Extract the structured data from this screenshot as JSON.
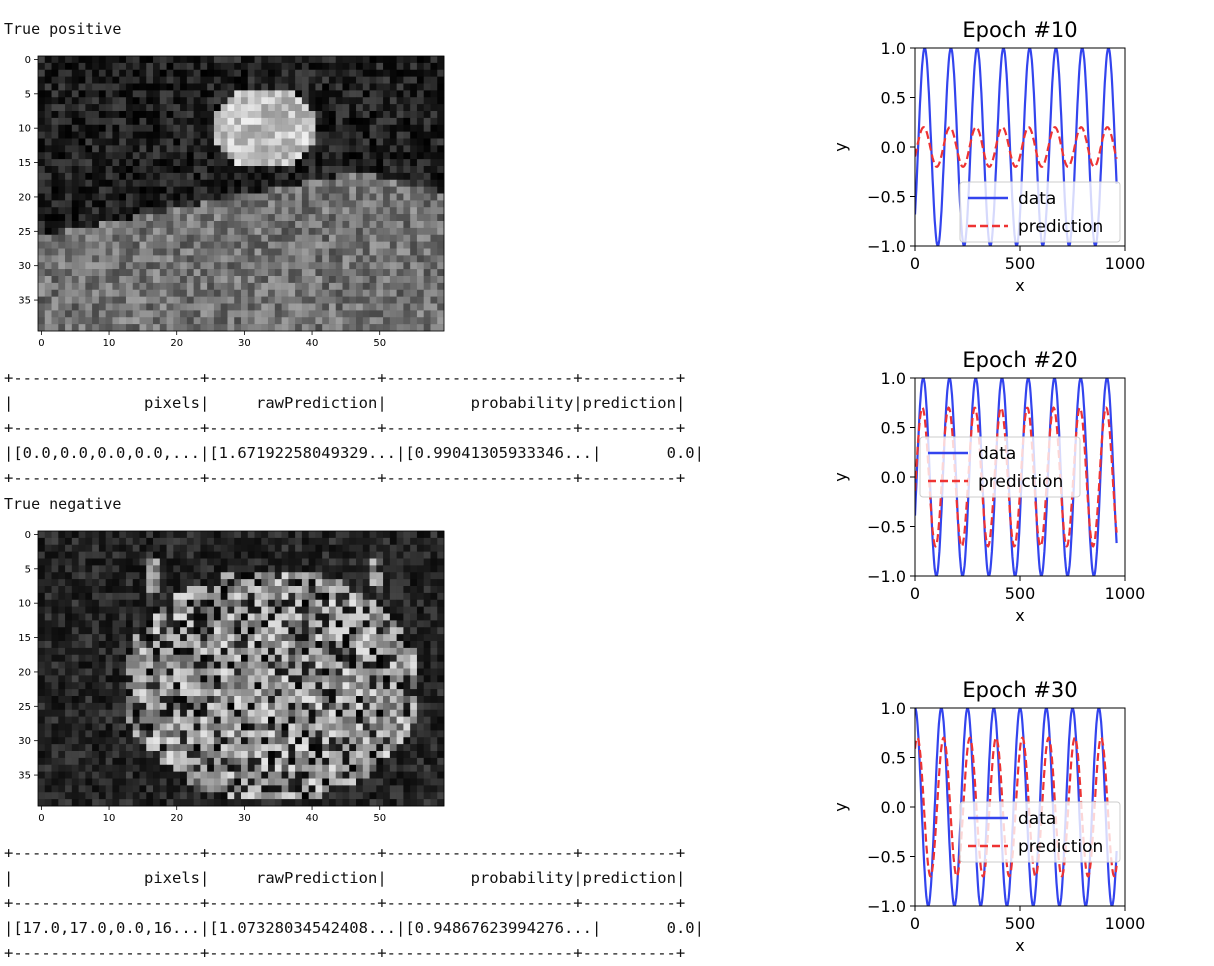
{
  "sections": [
    {
      "heading": "True positive",
      "image_subject": "person-photo-pixelated",
      "table": {
        "headers": [
          "pixels",
          "rawPrediction",
          "probability",
          "prediction"
        ],
        "row": [
          "[0.0,0.0,0.0,0.0,...",
          "[1.67192258049329...",
          "[0.99041305933346...",
          "0.0"
        ]
      }
    },
    {
      "heading": "True negative",
      "image_subject": "tiger-photo-pixelated",
      "table": {
        "headers": [
          "pixels",
          "rawPrediction",
          "probability",
          "prediction"
        ],
        "row": [
          "[17.0,17.0,0.0,16...",
          "[1.07328034542408...",
          "[0.94867623994276...",
          "0.0"
        ]
      }
    }
  ],
  "image_axes": {
    "y_ticks": [
      "0",
      "5",
      "10",
      "15",
      "20",
      "25",
      "30",
      "35"
    ],
    "x_ticks": [
      "0",
      "10",
      "20",
      "30",
      "40",
      "50"
    ]
  },
  "chart_data": [
    {
      "type": "line",
      "title": "Epoch #10",
      "xlabel": "x",
      "ylabel": "y",
      "xlim": [
        0,
        1000
      ],
      "ylim": [
        -1,
        1
      ],
      "x_ticks": [
        "0",
        "500",
        "1000"
      ],
      "y_ticks": [
        "1.0",
        "0.5",
        "0.0",
        "−0.5",
        "−1.0"
      ],
      "legend": [
        "data",
        "prediction"
      ],
      "legend_position": "lower-right",
      "series": [
        {
          "name": "data",
          "color": "#3344ee",
          "style": "solid",
          "amplitude": 1.0,
          "period": 125,
          "phase": -0.75,
          "x_end": 960
        },
        {
          "name": "prediction",
          "color": "#ee3333",
          "style": "dashed",
          "amplitude": 0.2,
          "period": 125,
          "phase": -0.5,
          "x_end": 960
        }
      ]
    },
    {
      "type": "line",
      "title": "Epoch #20",
      "xlabel": "x",
      "ylabel": "y",
      "xlim": [
        0,
        1000
      ],
      "ylim": [
        -1,
        1
      ],
      "x_ticks": [
        "0",
        "500",
        "1000"
      ],
      "y_ticks": [
        "1.0",
        "0.5",
        "0.0",
        "−0.5",
        "−1.0"
      ],
      "legend": [
        "data",
        "prediction"
      ],
      "legend_position": "center-left",
      "series": [
        {
          "name": "data",
          "color": "#3344ee",
          "style": "solid",
          "amplitude": 1.0,
          "period": 125,
          "phase": -0.4,
          "x_end": 960
        },
        {
          "name": "prediction",
          "color": "#ee3333",
          "style": "dashed",
          "amplitude": 0.7,
          "period": 125,
          "phase": -0.2,
          "x_end": 960
        }
      ]
    },
    {
      "type": "line",
      "title": "Epoch #30",
      "xlabel": "x",
      "ylabel": "y",
      "xlim": [
        0,
        1000
      ],
      "ylim": [
        -1,
        1
      ],
      "x_ticks": [
        "0",
        "500",
        "1000"
      ],
      "y_ticks": [
        "1.0",
        "0.5",
        "0.0",
        "−0.5",
        "−1.0"
      ],
      "legend": [
        "data",
        "prediction"
      ],
      "legend_position": "center-right",
      "series": [
        {
          "name": "data",
          "color": "#3344ee",
          "style": "solid",
          "amplitude": 1.0,
          "period": 125,
          "phase": 1.55,
          "x_end": 960
        },
        {
          "name": "prediction",
          "color": "#ee3333",
          "style": "dashed",
          "amplitude": 0.7,
          "period": 125,
          "phase": 1.0,
          "x_end": 960
        }
      ]
    }
  ]
}
